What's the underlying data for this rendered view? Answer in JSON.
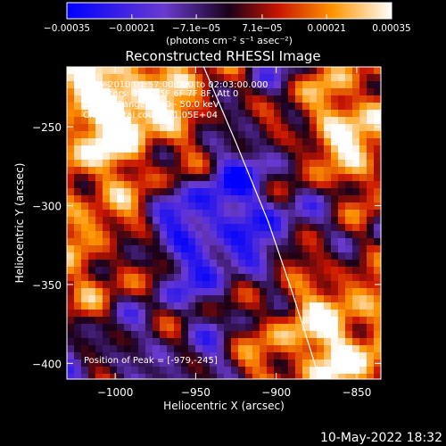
{
  "chart_data": {
    "type": "heatmap",
    "title": "Reconstructed RHESSI Image",
    "xlabel": "Heliocentric X (arcsec)",
    "ylabel": "Heliocentric Y (arcsec)",
    "xlim": [
      -1030,
      -835
    ],
    "ylim": [
      -410,
      -212
    ],
    "x_ticks": [
      -1000,
      -950,
      -900,
      -850
    ],
    "x_tick_labels": [
      "−1000",
      "−950",
      "−900",
      "−850"
    ],
    "y_ticks": [
      -250,
      -300,
      -350,
      -400
    ],
    "y_tick_labels": [
      "−250",
      "−300",
      "−350",
      "−400"
    ],
    "colorbar": {
      "min": -0.00035,
      "max": 0.00035,
      "ticks": [
        -0.00035,
        -0.00021,
        -7.1e-05,
        7.1e-05,
        0.00021,
        0.00035
      ],
      "tick_labels": [
        "−0.00035",
        "−0.00021",
        "−7.1e−05",
        "7.1e−05",
        "0.00021",
        "0.00035"
      ],
      "unit_label": "(photons cm⁻² s⁻¹ asec⁻²)",
      "colors": [
        "#0000ff",
        "#6a3ad0",
        "#1a0018",
        "#c81400",
        "#ff9600",
        "#ffffff"
      ]
    },
    "annotations": [
      "3-May-2010 01:57:00.000 to 02:03:00.000",
      "Detectors: 3F 4F 5F 6F 7F 8F, Att 0",
      "Energy Range: 25.0 - 50.0 keV",
      "Clean.  Total counts: 1.05E+04"
    ],
    "peak_label": "Position of Peak = [-979,-245]",
    "limb_curve": [
      [
        -945,
        -212
      ],
      [
        -925,
        -260
      ],
      [
        -905,
        -310
      ],
      [
        -890,
        -355
      ],
      [
        -873,
        -410
      ]
    ],
    "footer": "10-May-2022 18:32"
  }
}
